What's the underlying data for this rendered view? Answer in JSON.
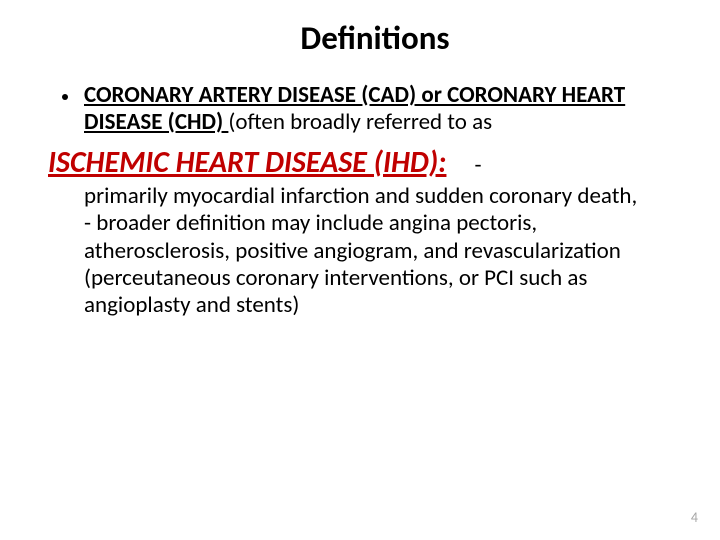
{
  "title": "Definitions",
  "bullet": {
    "term1": "CORONARY ARTERY DISEASE (CAD) or CORONARY HEART DISEASE (CHD) ",
    "tail": "(often broadly referred to as"
  },
  "ihd": {
    "label": "ISCHEMIC HEART DISEASE (IHD):",
    "dash": "-"
  },
  "body": {
    "line1": "primarily myocardial infarction and sudden coronary death,",
    "line2": " - broader definition may include angina pectoris, atherosclerosis, positive angiogram, and revascularization (perceutaneous coronary interventions, or PCI such as angioplasty and stents)"
  },
  "pageNumber": "4",
  "colors": {
    "accent_red": "#c00000",
    "text": "#000000",
    "page_num": "#a6a6a6",
    "background": "#ffffff"
  },
  "typography": {
    "title_fontsize": 33,
    "body_fontsize": 23,
    "ihd_fontsize": 30,
    "pagenum_fontsize": 14,
    "font_family": "Calibri"
  }
}
